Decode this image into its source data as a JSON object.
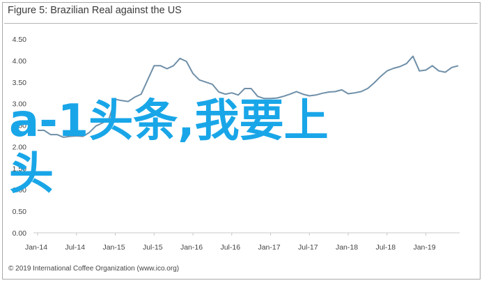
{
  "header": {
    "title": "Figure 5: Brazilian Real against the US"
  },
  "footer": {
    "text": "© 2019 International Coffee Organization (www.ico.org)"
  },
  "overlay": {
    "text": "a-1头条,我要上头",
    "color": "#19a6e8"
  },
  "chart_data": {
    "type": "line",
    "title": "Figure 5: Brazilian Real against the US",
    "xlabel": "",
    "ylabel": "",
    "ylim": [
      0,
      4.5
    ],
    "yticks": [
      0.0,
      0.5,
      1.0,
      1.5,
      2.0,
      2.5,
      3.0,
      3.5,
      4.0,
      4.5
    ],
    "ytick_labels": [
      "0.00",
      "0.50",
      "1.00",
      "1.50",
      "2.00",
      "2.50",
      "3.00",
      "3.50",
      "4.00",
      "4.50"
    ],
    "xtick_labels": [
      "Jan-14",
      "Jul-14",
      "Jan-15",
      "Jul-15",
      "Jan-16",
      "Jul-16",
      "Jan-17",
      "Jul-17",
      "Jan-18",
      "Jul-18",
      "Jan-19"
    ],
    "grid": false,
    "line_color": "#6f8fa8",
    "series": [
      {
        "values": [
          2.38,
          2.38,
          2.28,
          2.28,
          2.22,
          2.24,
          2.25,
          2.24,
          2.33,
          2.48,
          2.55,
          2.63,
          3.1,
          3.07,
          3.05,
          3.15,
          3.22,
          3.55,
          3.88,
          3.88,
          3.81,
          3.88,
          4.05,
          3.98,
          3.7,
          3.55,
          3.5,
          3.45,
          3.27,
          3.22,
          3.25,
          3.2,
          3.35,
          3.35,
          3.17,
          3.12,
          3.12,
          3.13,
          3.17,
          3.22,
          3.28,
          3.22,
          3.18,
          3.2,
          3.24,
          3.27,
          3.28,
          3.32,
          3.23,
          3.25,
          3.28,
          3.35,
          3.48,
          3.63,
          3.76,
          3.82,
          3.86,
          3.93,
          4.1,
          3.76,
          3.78,
          3.88,
          3.76,
          3.73,
          3.84,
          3.88
        ]
      }
    ]
  }
}
